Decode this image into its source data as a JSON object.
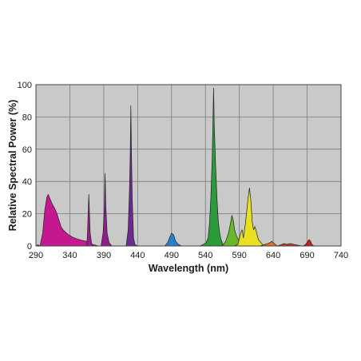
{
  "chart_data": {
    "type": "area",
    "title": "",
    "xlabel": "Wavelength (nm)",
    "ylabel": "Relative Spectral Power (%)",
    "xlim": [
      290,
      740
    ],
    "ylim": [
      0,
      100
    ],
    "x_ticks": [
      290,
      340,
      390,
      440,
      490,
      540,
      590,
      640,
      690,
      740
    ],
    "x_tick_labels": [
      "290",
      "340",
      "390",
      "440",
      "490",
      "540",
      "590",
      "640",
      "690",
      "740"
    ],
    "y_ticks": [
      0,
      20,
      40,
      60,
      80,
      100
    ],
    "y_tick_labels": [
      "0",
      "20",
      "40",
      "60",
      "80",
      "100"
    ],
    "grid": true,
    "colors": {
      "plot_background": "#c9c9c9",
      "grid": "#7a7a7a"
    },
    "series": [
      {
        "color": "#7a2a8a",
        "points": [
          [
            290,
            0
          ],
          [
            293,
            0.8
          ],
          [
            296,
            0
          ],
          [
            300,
            0
          ]
        ]
      },
      {
        "color": "#c4188e",
        "points": [
          [
            296,
            0
          ],
          [
            300,
            8
          ],
          [
            303,
            22
          ],
          [
            306,
            30
          ],
          [
            308,
            32
          ],
          [
            311,
            29
          ],
          [
            314,
            26
          ],
          [
            318,
            23
          ],
          [
            321,
            20
          ],
          [
            324,
            16
          ],
          [
            327,
            12
          ],
          [
            330,
            10
          ],
          [
            334,
            8.5
          ],
          [
            338,
            7
          ],
          [
            344,
            5.5
          ],
          [
            350,
            4.5
          ],
          [
            358,
            3.5
          ],
          [
            364,
            3
          ],
          [
            368,
            2
          ],
          [
            373,
            1
          ],
          [
            378,
            0.5
          ],
          [
            382,
            0
          ]
        ]
      },
      {
        "color": "#9b1c8a",
        "points": [
          [
            365,
            0
          ],
          [
            366,
            8
          ],
          [
            367,
            20
          ],
          [
            368,
            32
          ],
          [
            369,
            20
          ],
          [
            370,
            8
          ],
          [
            372,
            2
          ],
          [
            374,
            0
          ]
        ]
      },
      {
        "color": "#8e1f8a",
        "points": [
          [
            386,
            0
          ],
          [
            389,
            8
          ],
          [
            391,
            25
          ],
          [
            392,
            45
          ],
          [
            393,
            25
          ],
          [
            395,
            8
          ],
          [
            398,
            2
          ],
          [
            402,
            0
          ]
        ]
      },
      {
        "color": "#6d2a8e",
        "points": [
          [
            423,
            0
          ],
          [
            426,
            10
          ],
          [
            428,
            35
          ],
          [
            429,
            55
          ],
          [
            430,
            87
          ],
          [
            431,
            55
          ],
          [
            432,
            30
          ],
          [
            434,
            5
          ],
          [
            436,
            1
          ],
          [
            440,
            0
          ]
        ]
      },
      {
        "color": "#2a7fc9",
        "points": [
          [
            480,
            0
          ],
          [
            484,
            2
          ],
          [
            487,
            5
          ],
          [
            490,
            8
          ],
          [
            493,
            7
          ],
          [
            496,
            3
          ],
          [
            500,
            1
          ],
          [
            505,
            0
          ]
        ]
      },
      {
        "color": "#2a9a3a",
        "points": [
          [
            532,
            0
          ],
          [
            537,
            1
          ],
          [
            541,
            2
          ],
          [
            544,
            5
          ],
          [
            546,
            14
          ],
          [
            548,
            30
          ],
          [
            550,
            55
          ],
          [
            551,
            75
          ],
          [
            552,
            98
          ],
          [
            553,
            75
          ],
          [
            555,
            50
          ],
          [
            557,
            30
          ],
          [
            559,
            15
          ],
          [
            561,
            8
          ],
          [
            563,
            4
          ],
          [
            566,
            1
          ],
          [
            570,
            0
          ]
        ]
      },
      {
        "color": "#6ab52a",
        "points": [
          [
            563,
            0
          ],
          [
            567,
            1
          ],
          [
            570,
            3
          ],
          [
            574,
            8
          ],
          [
            577,
            14
          ],
          [
            579,
            19
          ],
          [
            581,
            16
          ],
          [
            583,
            10
          ],
          [
            586,
            6
          ],
          [
            590,
            3
          ],
          [
            595,
            1
          ],
          [
            600,
            0
          ]
        ]
      },
      {
        "color": "#e8e020",
        "points": [
          [
            583,
            0
          ],
          [
            588,
            1
          ],
          [
            592,
            8
          ],
          [
            594,
            10
          ],
          [
            596,
            5
          ],
          [
            599,
            14
          ],
          [
            601,
            22
          ],
          [
            603,
            30
          ],
          [
            605,
            36
          ],
          [
            607,
            28
          ],
          [
            609,
            15
          ],
          [
            611,
            10
          ],
          [
            613,
            12
          ],
          [
            615,
            9
          ],
          [
            618,
            4
          ],
          [
            622,
            2
          ],
          [
            626,
            0
          ]
        ]
      },
      {
        "color": "#e07020",
        "points": [
          [
            620,
            0
          ],
          [
            624,
            0.5
          ],
          [
            628,
            1
          ],
          [
            632,
            1.5
          ],
          [
            635,
            2
          ],
          [
            638,
            3
          ],
          [
            640,
            2
          ],
          [
            643,
            1
          ],
          [
            646,
            0
          ]
        ]
      },
      {
        "color": "#c03a28",
        "points": [
          [
            645,
            0
          ],
          [
            650,
            0.5
          ],
          [
            656,
            1.5
          ],
          [
            660,
            1
          ],
          [
            665,
            1.5
          ],
          [
            670,
            1
          ],
          [
            676,
            0.5
          ],
          [
            682,
            0
          ]
        ]
      },
      {
        "color": "#c81e1e",
        "points": [
          [
            684,
            0
          ],
          [
            688,
            1
          ],
          [
            691,
            3
          ],
          [
            693,
            4
          ],
          [
            695,
            3
          ],
          [
            697,
            1
          ],
          [
            700,
            0
          ]
        ]
      }
    ]
  }
}
